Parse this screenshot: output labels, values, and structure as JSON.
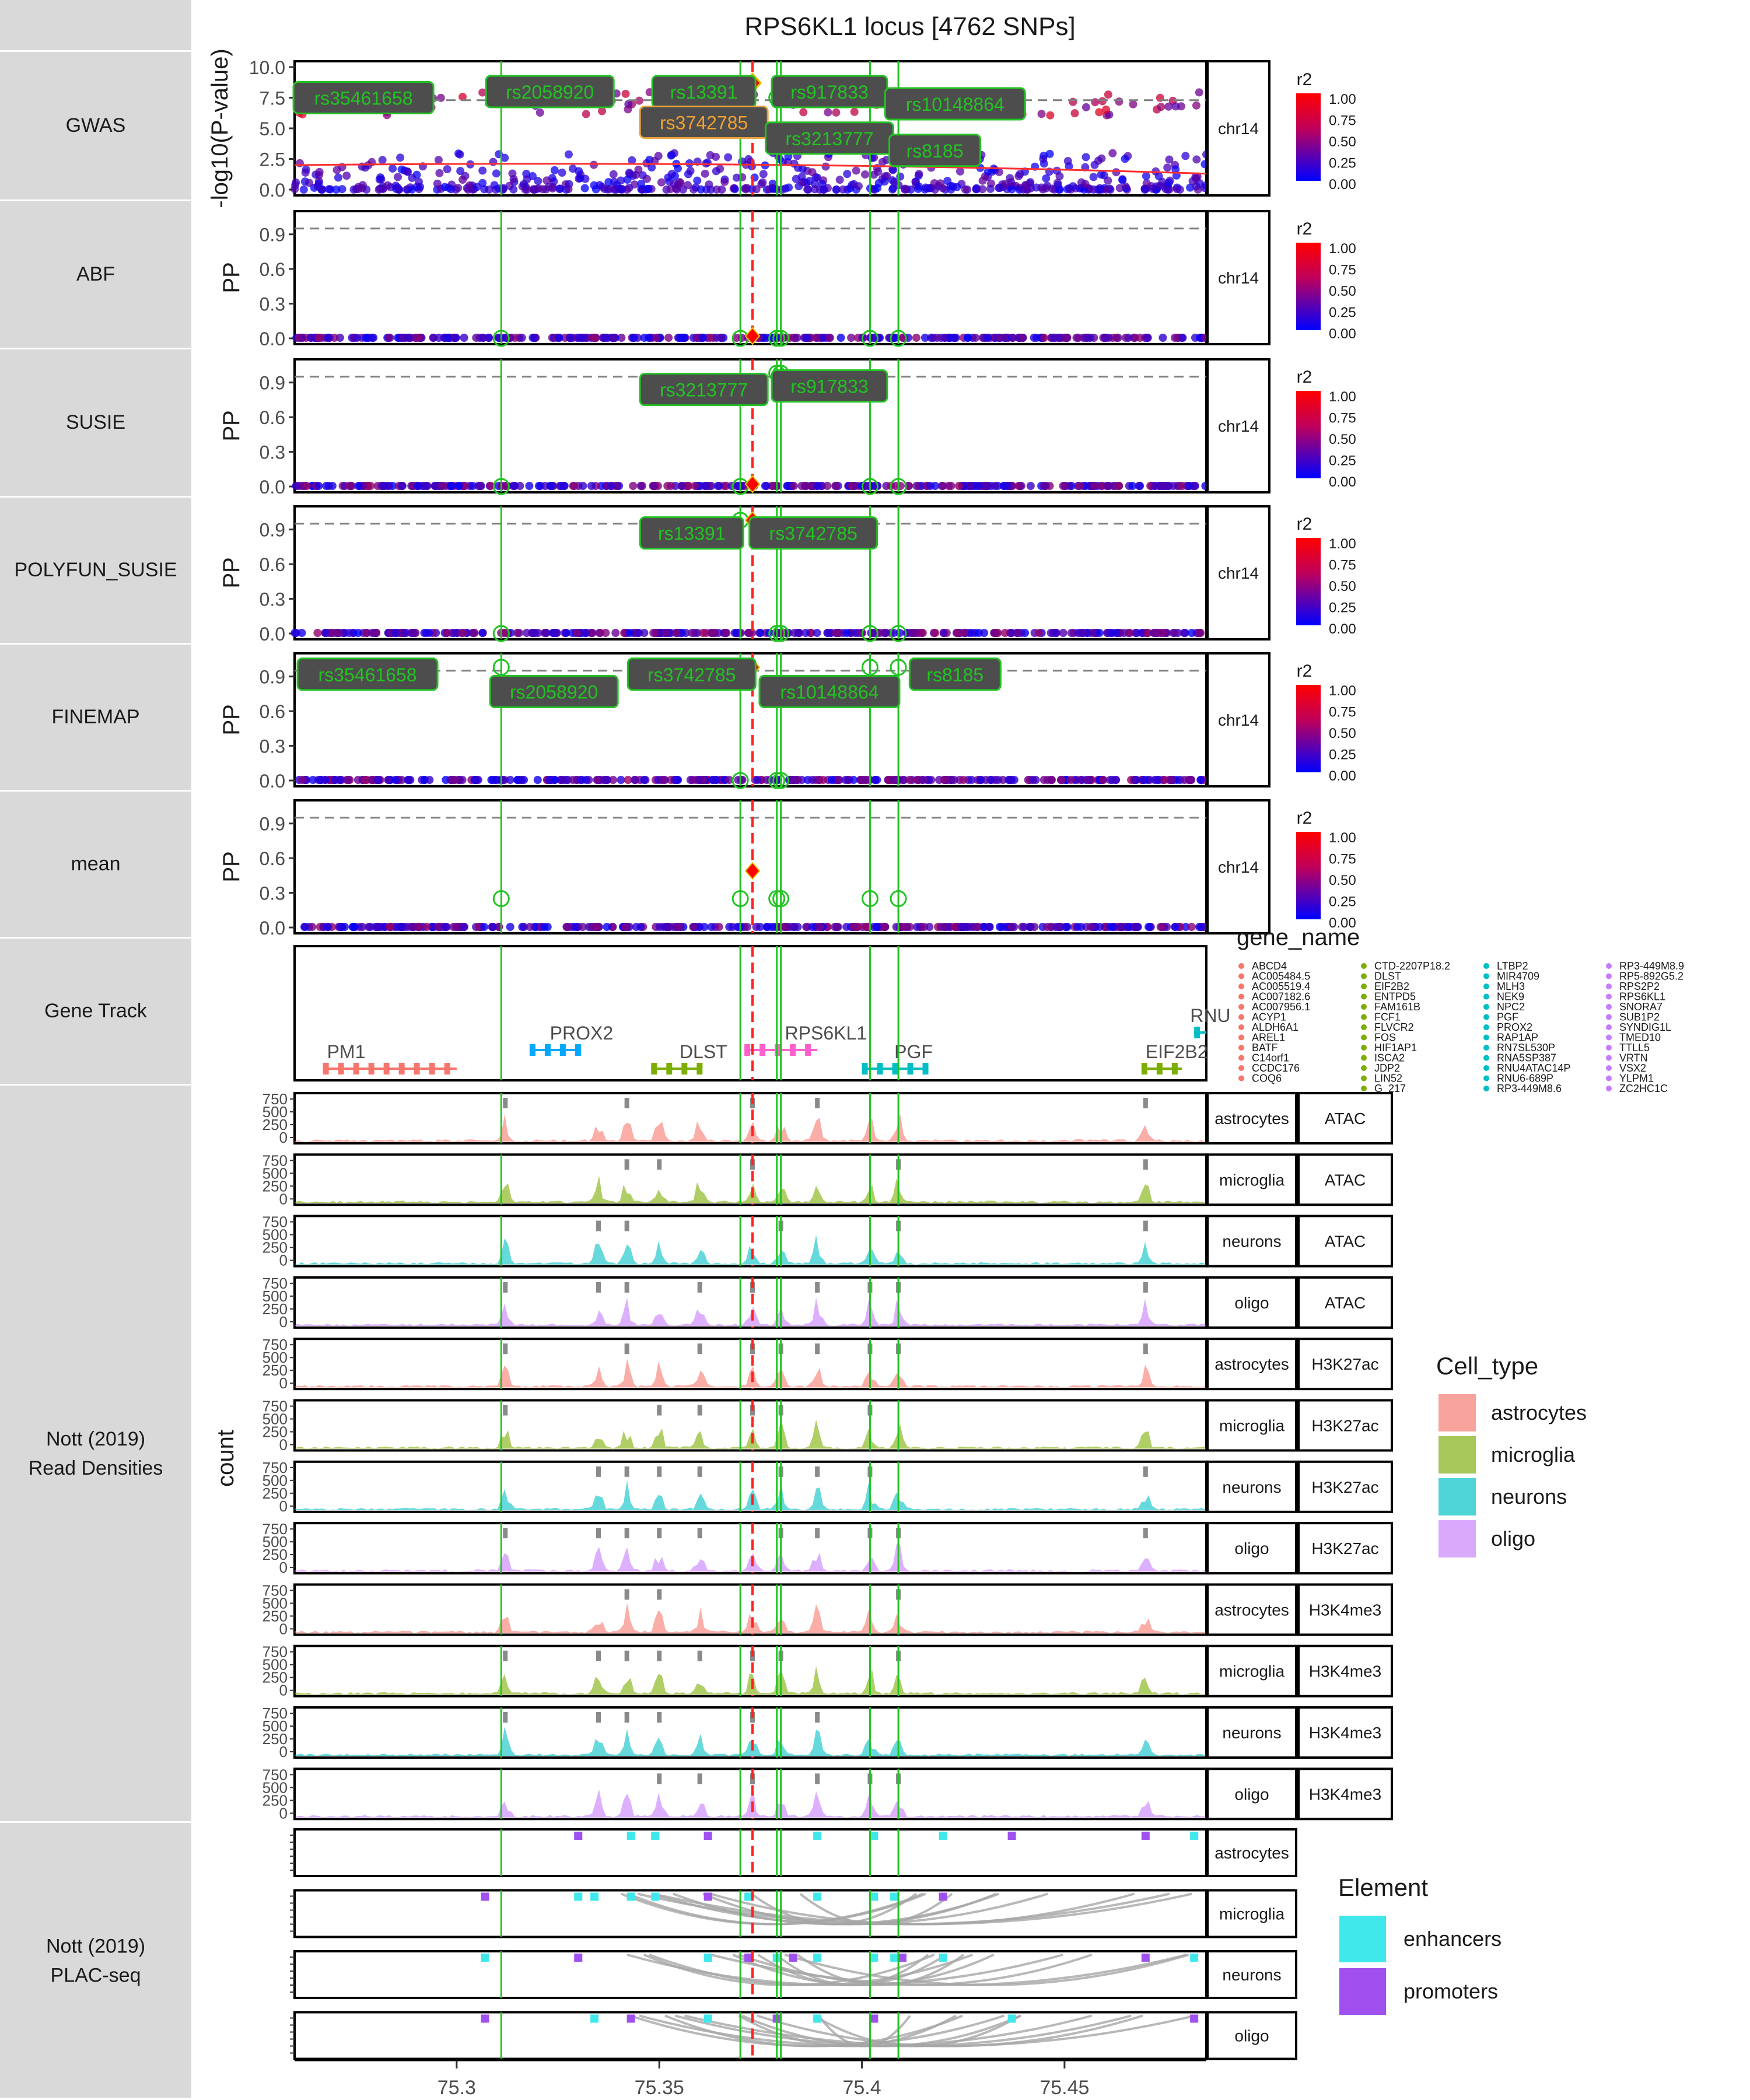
{
  "chart_data": {
    "type": "scatter",
    "title": "RPS6KL1 locus [4762 SNPs]",
    "x_tick_labels": [
      "75.3",
      "75.35",
      "75.4",
      "75.45"
    ],
    "x_ticks": [
      75.3,
      75.35,
      75.4,
      75.45
    ],
    "xlim": [
      75.26,
      75.485
    ],
    "chrom_label": "chr14",
    "row_labels": [
      "GWAS",
      "ABF",
      "SUSIE",
      "POLYFUN_SUSIE",
      "FINEMAP",
      "mean",
      "Gene Track",
      "Nott (2019)\nRead Densities",
      "Nott (2019)\nPLAC-seq"
    ],
    "lead_snp_pos": 75.373,
    "credible_set_positions": [
      75.311,
      75.37,
      75.379,
      75.38,
      75.402,
      75.409
    ],
    "r2_legend": {
      "title": "r2",
      "ticks": [
        "1.00",
        "0.75",
        "0.50",
        "0.25",
        "0.00"
      ],
      "high_color": "#ff0000",
      "low_color": "#0000ff"
    },
    "gwas": {
      "ylabel": "-log10(P-value)",
      "yticks": [
        "0.0",
        "2.5",
        "5.0",
        "7.5",
        "10.0"
      ],
      "ylim": [
        0,
        10
      ],
      "threshold": 7.3,
      "lead_value": 8.7,
      "labels": [
        {
          "text": "rs35461658",
          "x": 75.277,
          "y": 7.5,
          "style": "green"
        },
        {
          "text": "rs2058920",
          "x": 75.323,
          "y": 8.0,
          "style": "green"
        },
        {
          "text": "rs13391",
          "x": 75.361,
          "y": 8.0,
          "style": "green"
        },
        {
          "text": "rs3742785",
          "x": 75.361,
          "y": 5.5,
          "style": "orange"
        },
        {
          "text": "rs917833",
          "x": 75.392,
          "y": 8.0,
          "style": "green"
        },
        {
          "text": "rs10148864",
          "x": 75.423,
          "y": 7.0,
          "style": "green"
        },
        {
          "text": "rs3213777",
          "x": 75.392,
          "y": 4.2,
          "style": "green"
        },
        {
          "text": "rs8185",
          "x": 75.418,
          "y": 3.2,
          "style": "green"
        }
      ]
    },
    "finemap_panels": [
      {
        "name": "ABF",
        "ylabel": "PP",
        "yticks": [
          "0.0",
          "0.3",
          "0.6",
          "0.9"
        ],
        "threshold": 0.95,
        "lead_value": 0.02,
        "labels": []
      },
      {
        "name": "SUSIE",
        "ylabel": "PP",
        "yticks": [
          "0.0",
          "0.3",
          "0.6",
          "0.9"
        ],
        "threshold": 0.95,
        "lead_value": 0.02,
        "labels": [
          {
            "text": "rs3213777",
            "x": 75.361,
            "y": 0.84
          },
          {
            "text": "rs917833",
            "x": 75.392,
            "y": 0.87
          }
        ]
      },
      {
        "name": "POLYFUN_SUSIE",
        "ylabel": "PP",
        "yticks": [
          "0.0",
          "0.3",
          "0.6",
          "0.9"
        ],
        "threshold": 0.95,
        "lead_value": 0.98,
        "labels": [
          {
            "text": "rs13391",
            "x": 75.358,
            "y": 0.87
          },
          {
            "text": "rs3742785",
            "x": 75.388,
            "y": 0.87
          }
        ]
      },
      {
        "name": "FINEMAP",
        "ylabel": "PP",
        "yticks": [
          "0.0",
          "0.3",
          "0.6",
          "0.9"
        ],
        "threshold": 0.95,
        "lead_value": 0.98,
        "labels": [
          {
            "text": "rs35461658",
            "x": 75.278,
            "y": 0.92
          },
          {
            "text": "rs2058920",
            "x": 75.324,
            "y": 0.77
          },
          {
            "text": "rs3742785",
            "x": 75.358,
            "y": 0.92
          },
          {
            "text": "rs10148864",
            "x": 75.392,
            "y": 0.77
          },
          {
            "text": "rs8185",
            "x": 75.423,
            "y": 0.92
          }
        ]
      },
      {
        "name": "mean",
        "ylabel": "PP",
        "yticks": [
          "0.0",
          "0.3",
          "0.6",
          "0.9"
        ],
        "threshold": 0.95,
        "lead_value": 0.49,
        "labels": []
      }
    ],
    "gene_track": {
      "genes": [
        {
          "name": "PM1",
          "start": 75.267,
          "end": 75.3,
          "color": "#f8766d",
          "label_x": 75.268,
          "level": 0
        },
        {
          "name": "PROX2",
          "start": 75.318,
          "end": 75.33,
          "color": "#00a9ff",
          "label_x": 75.323,
          "level": 1
        },
        {
          "name": "DLST",
          "start": 75.348,
          "end": 75.36,
          "color": "#7cae00",
          "label_x": 75.355,
          "level": 0
        },
        {
          "name": "RPS6KL1",
          "start": 75.371,
          "end": 75.389,
          "color": "#ff61cc",
          "label_x": 75.381,
          "level": 1
        },
        {
          "name": "PGF",
          "start": 75.4,
          "end": 75.415,
          "color": "#00bfc4",
          "label_x": 75.408,
          "level": 0
        },
        {
          "name": "EIF2B2",
          "start": 75.469,
          "end": 75.479,
          "color": "#7cae00",
          "label_x": 75.47,
          "level": 0
        },
        {
          "name": "RNU",
          "start": 75.482,
          "end": 75.485,
          "color": "#00bfc4",
          "label_x": 75.481,
          "level": 2
        }
      ],
      "legend_title": "gene_name",
      "legend_columns": [
        {
          "color": "#f8766d",
          "items": [
            "ABCD4",
            "AC005484.5",
            "AC005519.4",
            "AC007182.6",
            "AC007956.1",
            "ACYP1",
            "ALDH6A1",
            "AREL1",
            "BATF",
            "C14orf1",
            "CCDC176",
            "COQ6"
          ]
        },
        {
          "color": "#7cae00",
          "items": [
            "CTD-2207P18.2",
            "DLST",
            "EIF2B2",
            "ENTPD5",
            "FAM161B",
            "FCF1",
            "FLVCR2",
            "FOS",
            "HIF1AP1",
            "ISCA2",
            "JDP2",
            "LIN52",
            "G_217"
          ]
        },
        {
          "color": "#00bfc4",
          "items": [
            "LTBP2",
            "MIR4709",
            "MLH3",
            "NEK9",
            "NPC2",
            "PGF",
            "PROX2",
            "RAP1AP",
            "RN7SL530P",
            "RNA5SP387",
            "RNU4ATAC14P",
            "RNU6-689P",
            "RP3-449M8.6"
          ]
        },
        {
          "color": "#c77cff",
          "items": [
            "RP3-449M8.9",
            "RP5-892G5.2",
            "RPS2P2",
            "RPS6KL1",
            "SNORA7",
            "SUB1P2",
            "SYNDIG1L",
            "TMED10",
            "TTLL5",
            "VRTN",
            "VSX2",
            "YLPM1",
            "ZC2HC1C"
          ]
        }
      ]
    },
    "read_density": {
      "ylabel": "count",
      "yticks": [
        "750",
        "500",
        "250",
        "0"
      ],
      "tracks": [
        {
          "cell": "astrocytes",
          "assay": "ATAC",
          "color": "#f8766d"
        },
        {
          "cell": "microglia",
          "assay": "ATAC",
          "color": "#7cae00"
        },
        {
          "cell": "neurons",
          "assay": "ATAC",
          "color": "#00bfc4"
        },
        {
          "cell": "oligo",
          "assay": "ATAC",
          "color": "#c77cff"
        },
        {
          "cell": "astrocytes",
          "assay": "H3K27ac",
          "color": "#f8766d"
        },
        {
          "cell": "microglia",
          "assay": "H3K27ac",
          "color": "#7cae00"
        },
        {
          "cell": "neurons",
          "assay": "H3K27ac",
          "color": "#00bfc4"
        },
        {
          "cell": "oligo",
          "assay": "H3K27ac",
          "color": "#c77cff"
        },
        {
          "cell": "astrocytes",
          "assay": "H3K4me3",
          "color": "#f8766d"
        },
        {
          "cell": "microglia",
          "assay": "H3K4me3",
          "color": "#7cae00"
        },
        {
          "cell": "neurons",
          "assay": "H3K4me3",
          "color": "#00bfc4"
        },
        {
          "cell": "oligo",
          "assay": "H3K4me3",
          "color": "#c77cff"
        }
      ],
      "legend_title": "Cell_type",
      "legend_items": [
        {
          "label": "astrocytes",
          "color": "#f8a39c"
        },
        {
          "label": "microglia",
          "color": "#a6c75a"
        },
        {
          "label": "neurons",
          "color": "#4fd5d8"
        },
        {
          "label": "oligo",
          "color": "#d9a9fc"
        }
      ]
    },
    "plac_seq": {
      "tracks": [
        "astrocytes",
        "microglia",
        "neurons",
        "oligo"
      ],
      "legend_title": "Element",
      "legend_items": [
        {
          "label": "enhancers",
          "color": "#40e8ec"
        },
        {
          "label": "promoters",
          "color": "#a050ef"
        }
      ]
    }
  }
}
